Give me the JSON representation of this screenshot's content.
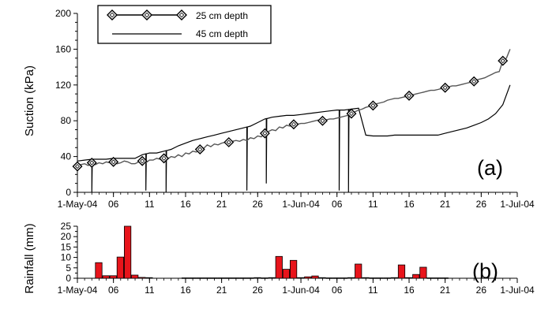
{
  "chart_data": [
    {
      "panel_label": "(a)",
      "type": "line",
      "ylabel": "Suction (kPa)",
      "ylim": [
        0,
        200
      ],
      "y_ticks": [
        0,
        40,
        80,
        120,
        160,
        200
      ],
      "x_tick_labels": [
        "1-May-04",
        "06",
        "11",
        "16",
        "21",
        "26",
        "1-Jun-04",
        "06",
        "11",
        "16",
        "21",
        "26",
        "1-Jul-04"
      ],
      "x_tick_days": [
        0,
        5,
        10,
        15,
        20,
        25,
        31,
        36,
        41,
        46,
        51,
        56,
        61
      ],
      "xlim_days": [
        0,
        61
      ],
      "x_origin_date": "1-May-04",
      "legend": {
        "position": "top-left",
        "boxed": true
      },
      "series": [
        {
          "name": "25 cm depth",
          "color": "#555555",
          "marker": "diamond",
          "marker_days": [
            0,
            2,
            5,
            9,
            12,
            17,
            21,
            26,
            30,
            34,
            38,
            41,
            46,
            51,
            55,
            59
          ],
          "x_days": [
            0,
            0.5,
            1,
            1.5,
            2,
            2.5,
            3,
            3.5,
            4,
            4.5,
            5,
            5.5,
            6,
            6.5,
            7,
            7.5,
            8,
            8.5,
            9,
            9.5,
            10,
            10.5,
            11,
            11.5,
            12,
            12.5,
            13,
            13.5,
            14,
            14.5,
            15,
            15.5,
            16,
            16.5,
            17,
            17.5,
            18,
            18.5,
            19,
            19.5,
            20,
            20.5,
            21,
            21.5,
            22,
            22.5,
            23,
            23.5,
            24,
            24.5,
            25,
            25.5,
            26,
            26.5,
            27,
            27.5,
            28,
            28.5,
            29,
            29.5,
            30,
            30.5,
            31,
            31.5,
            32,
            32.5,
            33,
            33.5,
            34,
            34.5,
            35,
            35.5,
            36,
            36.5,
            37,
            37.5,
            38,
            38.5,
            39,
            39.5,
            40,
            40.5,
            41,
            41.5,
            42,
            42.5,
            43,
            43.5,
            44,
            44.5,
            45,
            45.5,
            46,
            46.5,
            47,
            47.5,
            48,
            48.5,
            49,
            49.5,
            50,
            50.5,
            51,
            51.5,
            52,
            52.5,
            53,
            53.5,
            54,
            54.5,
            55,
            55.5,
            56,
            56.5,
            57,
            57.5,
            58,
            58.5,
            59,
            59.5,
            60
          ],
          "y_values": [
            29,
            31,
            32,
            30,
            33,
            31,
            33,
            32,
            34,
            33,
            34,
            32,
            33,
            35,
            34,
            32,
            32,
            34,
            35,
            33,
            36,
            36,
            38,
            37,
            38,
            37,
            40,
            39,
            42,
            40,
            44,
            43,
            46,
            45,
            48,
            49,
            53,
            51,
            54,
            53,
            55,
            56,
            56,
            57,
            58,
            57,
            59,
            58,
            61,
            60,
            63,
            62,
            66,
            68,
            70,
            69,
            73,
            72,
            75,
            74,
            76,
            76,
            77,
            77,
            78,
            79,
            80,
            81,
            80,
            81,
            82,
            82,
            83,
            84,
            85,
            86,
            88,
            90,
            92,
            93,
            95,
            96,
            97,
            99,
            100,
            101,
            103,
            104,
            105,
            105,
            106,
            107,
            108,
            109,
            110,
            111,
            112,
            113,
            114,
            114,
            115,
            116,
            117,
            118,
            119,
            119,
            120,
            121,
            122,
            123,
            124,
            126,
            127,
            128,
            130,
            132,
            134,
            135,
            147,
            150,
            160
          ]
        },
        {
          "name": "45 cm depth",
          "color": "#000000",
          "x_days": [
            0,
            1,
            2,
            3,
            4,
            5,
            6,
            7,
            8,
            9,
            10,
            11,
            12,
            13,
            14,
            15,
            16,
            17,
            18,
            19,
            20,
            21,
            22,
            23,
            24,
            25,
            26,
            27,
            28,
            29,
            30,
            31,
            32,
            33,
            34,
            35,
            36,
            37,
            38,
            39,
            40,
            41,
            42,
            43,
            44,
            45,
            46,
            47,
            48,
            49,
            50,
            51,
            52,
            53,
            54,
            55,
            56,
            57,
            58,
            59,
            60
          ],
          "y_values": [
            35,
            36,
            37,
            37,
            37,
            38,
            38,
            38,
            38,
            42,
            44,
            44,
            46,
            48,
            52,
            55,
            58,
            60,
            62,
            64,
            66,
            68,
            70,
            72,
            74,
            78,
            82,
            84,
            85,
            86,
            86,
            87,
            88,
            89,
            90,
            91,
            92,
            92,
            93,
            94,
            64,
            63,
            63,
            63,
            64,
            64,
            64,
            64,
            64,
            64,
            64,
            66,
            68,
            70,
            72,
            75,
            78,
            82,
            88,
            98,
            120
          ],
          "drops": [
            {
              "day": 2,
              "to": 0
            },
            {
              "day": 9.5,
              "to": 2
            },
            {
              "day": 12.3,
              "to": 0
            },
            {
              "day": 23.5,
              "to": 2
            },
            {
              "day": 26.2,
              "to": 10
            },
            {
              "day": 36.3,
              "to": 2
            },
            {
              "day": 37.6,
              "to": 0
            }
          ]
        }
      ]
    },
    {
      "panel_label": "(b)",
      "type": "bar",
      "ylabel": "Rainfall (mm)",
      "ylim": [
        0,
        25
      ],
      "y_ticks": [
        0,
        5,
        10,
        15,
        20,
        25
      ],
      "x_tick_labels": [
        "1-May-04",
        "06",
        "11",
        "16",
        "21",
        "26",
        "1-Jun-04",
        "06",
        "11",
        "16",
        "21",
        "26",
        "1-Jul-04"
      ],
      "x_tick_days": [
        0,
        5,
        10,
        15,
        20,
        25,
        31,
        36,
        41,
        46,
        51,
        56,
        61
      ],
      "xlim_days": [
        0,
        61
      ],
      "bar_color": "#e8141b",
      "bar_days": [
        3,
        4,
        5,
        6,
        7,
        8,
        9,
        10,
        15,
        16,
        17,
        18,
        19,
        20,
        21,
        22,
        23,
        24,
        25,
        26,
        27,
        28,
        29,
        30,
        31,
        32,
        33,
        34,
        35,
        36,
        37,
        38,
        39,
        40,
        41,
        42,
        43,
        44,
        45,
        46,
        47,
        48,
        49,
        50,
        51
      ],
      "values": [
        7.5,
        1.2,
        1.2,
        10.2,
        25,
        1.5,
        0.4,
        0.3,
        0.2,
        0.2,
        0.2,
        0.2,
        0.2,
        0.2,
        0.2,
        0.2,
        0.2,
        0.2,
        0.3,
        0.2,
        0.3,
        10.5,
        4.3,
        8.6,
        0.3,
        0.7,
        1.1,
        0.3,
        0.2,
        0.2,
        0.2,
        0.3,
        6.8,
        0.3,
        0.2,
        0.2,
        0.2,
        0.3,
        6.4,
        0.3,
        1.8,
        5.3,
        0.2,
        0.2,
        0.2
      ]
    }
  ]
}
